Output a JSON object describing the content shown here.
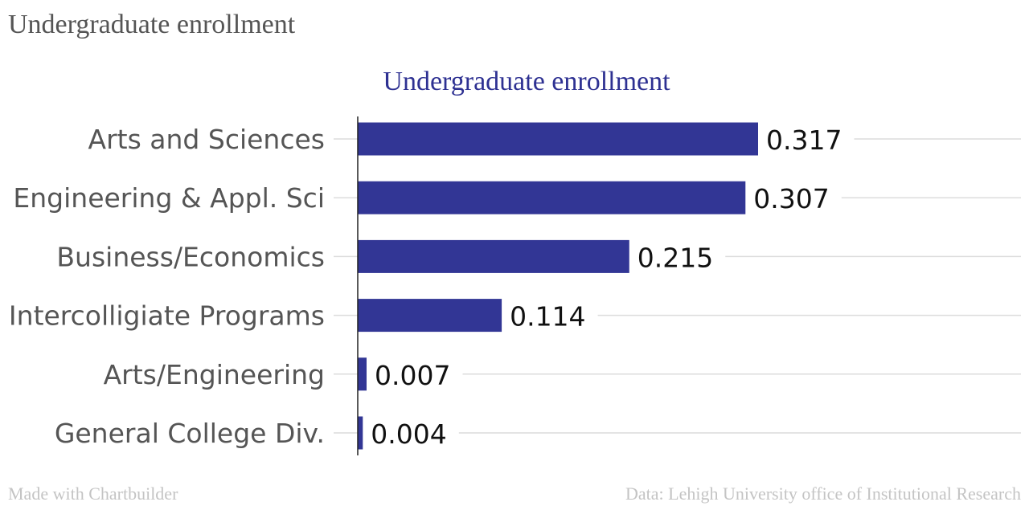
{
  "page_title": "Undergraduate enrollment",
  "footer": {
    "credit": "Made with Chartbuilder",
    "source": "Data: Lehigh University office of Institutional Research"
  },
  "colors": {
    "bar": "#323695",
    "title": "#2e3192",
    "gridline": "#dcdcdc",
    "axis": "#222222"
  },
  "chart_data": {
    "type": "bar",
    "orientation": "horizontal",
    "title": "Undergraduate enrollment",
    "categories": [
      "Arts and Sciences",
      "Engineering & Appl. Sci",
      "Business/Economics",
      "Intercolligiate Programs",
      "Arts/Engineering",
      "General College Div."
    ],
    "values": [
      0.317,
      0.307,
      0.215,
      0.114,
      0.007,
      0.004
    ],
    "value_labels": [
      "0.317",
      "0.307",
      "0.215",
      "0.114",
      "0.007",
      "0.004"
    ],
    "xlim": [
      0,
      0.317
    ],
    "grid": true,
    "legend": "none"
  }
}
